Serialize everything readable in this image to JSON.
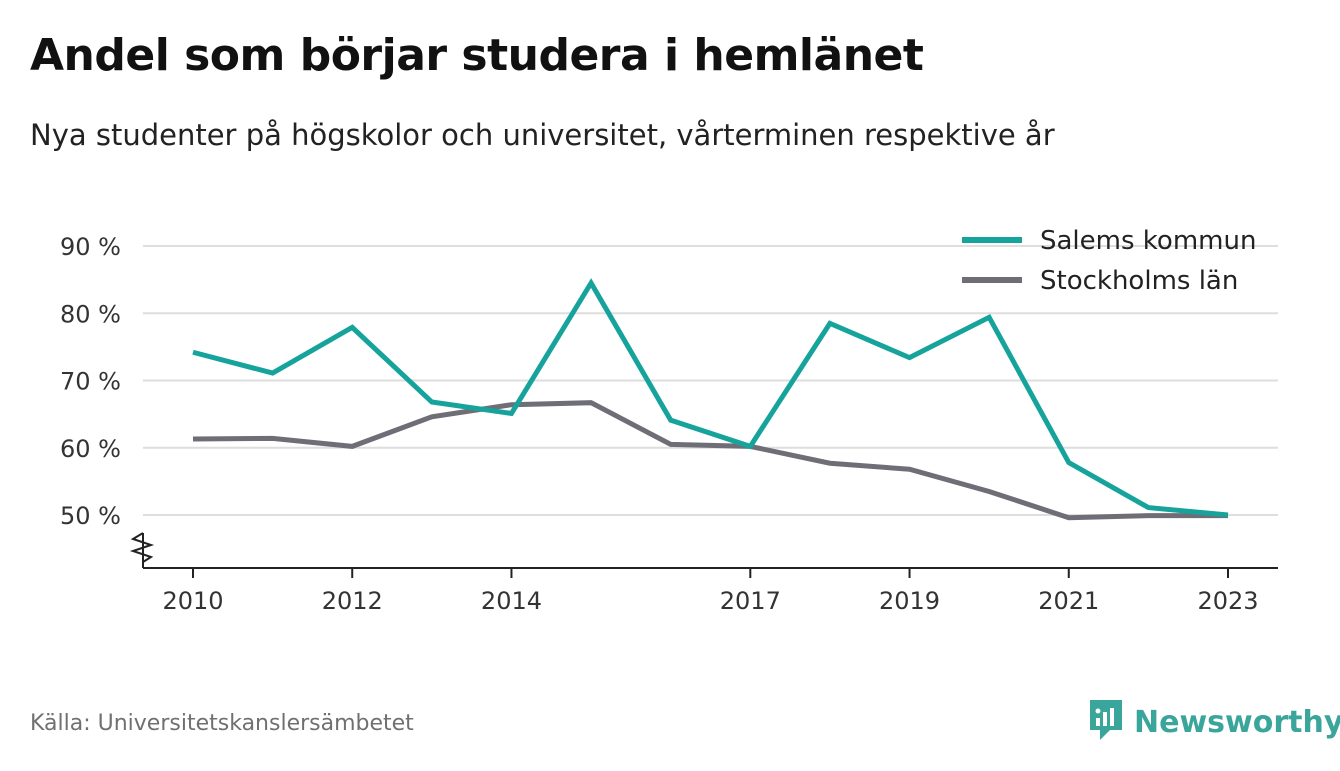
{
  "title": "Andel som börjar studera i hemlänet",
  "subtitle": "Nya studenter på högskolor och universitet, vårterminen respektive år",
  "source": "Källa: Universitetskanslersämbetet",
  "brand": {
    "name": "Newsworthy",
    "icon": "newsworthy-logo-icon",
    "color": "#3aa59a"
  },
  "chart_data": {
    "type": "line",
    "x": [
      2010,
      2011,
      2012,
      2013,
      2014,
      2015,
      2016,
      2017,
      2018,
      2019,
      2020,
      2021,
      2022,
      2023
    ],
    "x_tick_labels": [
      "2010",
      "2012",
      "2014",
      "2017",
      "2019",
      "2021",
      "2023"
    ],
    "y_tick_labels": [
      "90 %",
      "80 %",
      "70 %",
      "60 %",
      "50 %"
    ],
    "y_ticks": [
      90,
      80,
      70,
      60,
      50
    ],
    "ylim": [
      42,
      90
    ],
    "y_axis_break": true,
    "grid": true,
    "legend_position": "top-right",
    "series": [
      {
        "name": "Salems kommun",
        "color": "#16a39c",
        "values": [
          74.2,
          71.1,
          77.9,
          66.8,
          65.1,
          84.5,
          64.1,
          60.2,
          78.5,
          73.4,
          79.4,
          57.8,
          51.1,
          50.0
        ]
      },
      {
        "name": "Stockholms län",
        "color": "#6f6e77",
        "values": [
          61.3,
          61.4,
          60.2,
          64.6,
          66.4,
          66.7,
          60.5,
          60.2,
          57.7,
          56.8,
          53.5,
          49.6,
          49.9,
          49.9
        ]
      }
    ]
  }
}
